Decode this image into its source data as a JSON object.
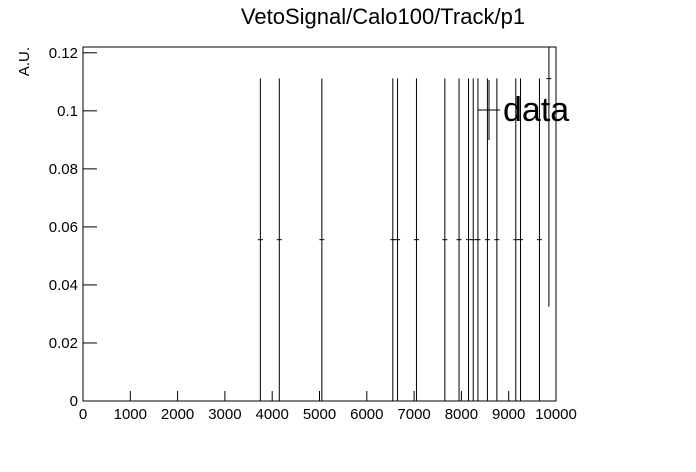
{
  "chart_data": {
    "type": "errorbar",
    "title": "VetoSignal/Calo100/Track/p1",
    "y_label": "A.U.",
    "x": [
      3750,
      4150,
      5050,
      6550,
      6650,
      7050,
      7650,
      7950,
      8150,
      8250,
      8350,
      8550,
      8750,
      9150,
      9250,
      9650,
      9850
    ],
    "series": [
      {
        "name": "data",
        "color": "#000000",
        "values": [
          0.0556,
          0.0556,
          0.0556,
          0.0556,
          0.0556,
          0.0556,
          0.0556,
          0.0556,
          0.0556,
          0.0556,
          0.0556,
          0.0556,
          0.0556,
          0.0556,
          0.0556,
          0.0556,
          0.1111
        ],
        "errors": [
          0.0556,
          0.0556,
          0.0556,
          0.0556,
          0.0556,
          0.0556,
          0.0556,
          0.0556,
          0.0556,
          0.0556,
          0.0556,
          0.0556,
          0.0556,
          0.0556,
          0.0556,
          0.0556,
          0.0786
        ]
      }
    ],
    "xlim": [
      0,
      10000
    ],
    "ylim": [
      0,
      0.122
    ],
    "xticks": [
      0,
      1000,
      2000,
      3000,
      4000,
      5000,
      6000,
      7000,
      8000,
      9000,
      10000
    ],
    "yticks": [
      0,
      0.02,
      0.04,
      0.06,
      0.08,
      0.1,
      0.12
    ],
    "legend": "top-right"
  }
}
